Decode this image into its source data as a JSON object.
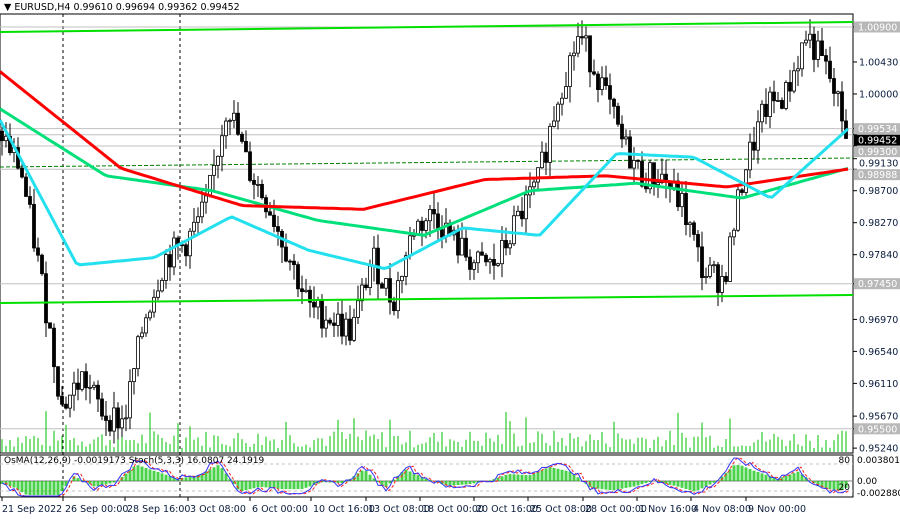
{
  "header": {
    "symbol": "EURUSD,H4",
    "open": "0.99610",
    "high": "0.99694",
    "low": "0.99362",
    "close": "0.99452"
  },
  "indicator": {
    "osma_label": "OsMA(12,26,9)",
    "osma_value": "-0.0019173",
    "stoch_label": "Stoch(5,3,3)",
    "stoch_main": "16.0807",
    "stoch_signal": "24.1919",
    "levels": [
      "80",
      "20"
    ],
    "osma_axis": [
      "0.0038013",
      "0.00",
      "-0.002880"
    ]
  },
  "colors": {
    "bull": "#000000",
    "bear": "#000000",
    "ma_red": "#ff0000",
    "ma_green": "#00e07a",
    "ma_cyan": "#22e0ee",
    "trend": "#00e000",
    "volume": "#00c000",
    "stoch_main": "#3333ff",
    "stoch_signal": "#ff2020"
  },
  "chart_data": {
    "type": "candlestick",
    "title": "EURUSD,H4",
    "ylim": [
      0.9524,
      1.009
    ],
    "y_ticks": [
      "1.00430",
      "1.00000",
      "0.99130",
      "0.98700",
      "0.98270",
      "0.97840",
      "0.96970",
      "0.96540",
      "0.96110",
      "0.95670",
      "0.95240"
    ],
    "price_labels": [
      {
        "text": "1.00900",
        "v": 1.009
      },
      {
        "text": "0.99534",
        "v": 0.99534
      },
      {
        "text": "0.99452",
        "v": 0.99452,
        "current": true
      },
      {
        "text": "0.99300",
        "v": 0.993
      },
      {
        "text": "0.98988",
        "v": 0.98988
      },
      {
        "text": "0.97450",
        "v": 0.9745
      },
      {
        "text": "0.95500",
        "v": 0.955
      }
    ],
    "x_labels": [
      "21 Sep 2022",
      "26 Sep 00:00",
      "28 Sep 16:00",
      "3 Oct 08:00",
      "6 Oct 00:00",
      "10 Oct 16:00",
      "13 Oct 08:00",
      "18 Oct 00:00",
      "20 Oct 16:00",
      "25 Oct 08:00",
      "28 Oct 00:00",
      "1 Nov 16:00",
      "4 Nov 08:00",
      "9 Nov 00:00"
    ],
    "close_path": [
      0.995,
      0.99,
      0.975,
      0.958,
      0.962,
      0.957,
      0.956,
      0.97,
      0.978,
      0.98,
      0.985,
      0.999,
      0.99,
      0.985,
      0.978,
      0.971,
      0.97,
      0.968,
      0.978,
      0.972,
      0.982,
      0.984,
      0.98,
      0.977,
      0.977,
      0.983,
      0.988,
      1.0,
      1.008,
      1.002,
      0.994,
      0.989,
      0.989,
      0.985,
      0.976,
      0.975,
      0.99,
      0.998,
      1.0,
      1.008,
      1.003,
      0.9945
    ],
    "ma_red": [
      1.003,
      0.99,
      0.985,
      0.9845,
      0.9885,
      0.989,
      0.9875,
      0.9899
    ],
    "ma_green": [
      0.998,
      0.989,
      0.987,
      0.983,
      0.981,
      0.987,
      0.988,
      0.986,
      0.99
    ],
    "ma_cyan": [
      0.9965,
      0.977,
      0.978,
      0.9835,
      0.979,
      0.9765,
      0.982,
      0.981,
      0.992,
      0.9915,
      0.986,
      0.9953
    ]
  }
}
